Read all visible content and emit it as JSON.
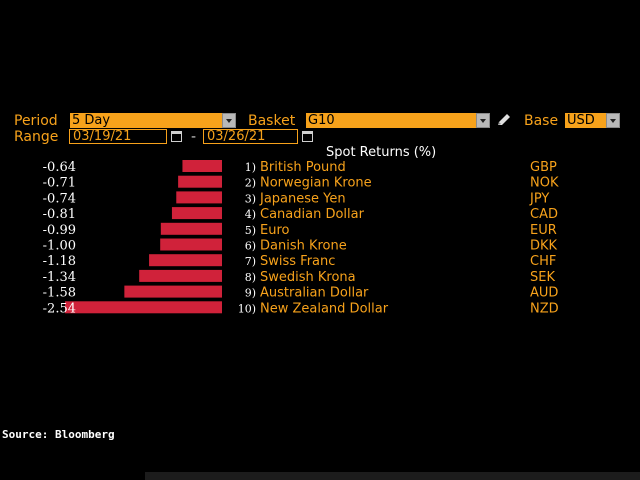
{
  "controls": {
    "period_label": "Period",
    "period_value": "5 Day",
    "basket_label": "Basket",
    "basket_value": "G10",
    "base_label": "Base",
    "base_value": "USD",
    "range_label": "Range",
    "range_start": "03/19/21",
    "range_separator": "-",
    "range_end": "03/26/21"
  },
  "chart_data": {
    "type": "bar",
    "title": "Spot Returns (%)",
    "orientation": "horizontal",
    "rows": [
      {
        "rank": "1)",
        "value": "-0.64",
        "currency": "British Pound",
        "code": "GBP"
      },
      {
        "rank": "2)",
        "value": "-0.71",
        "currency": "Norwegian Krone",
        "code": "NOK"
      },
      {
        "rank": "3)",
        "value": "-0.74",
        "currency": "Japanese Yen",
        "code": "JPY"
      },
      {
        "rank": "4)",
        "value": "-0.81",
        "currency": "Canadian Dollar",
        "code": "CAD"
      },
      {
        "rank": "5)",
        "value": "-0.99",
        "currency": "Euro",
        "code": "EUR"
      },
      {
        "rank": "6)",
        "value": "-1.00",
        "currency": "Danish Krone",
        "code": "DKK"
      },
      {
        "rank": "7)",
        "value": "-1.18",
        "currency": "Swiss Franc",
        "code": "CHF"
      },
      {
        "rank": "8)",
        "value": "-1.34",
        "currency": "Swedish Krona",
        "code": "SEK"
      },
      {
        "rank": "9)",
        "value": "-1.58",
        "currency": "Australian Dollar",
        "code": "AUD"
      },
      {
        "rank": "10)",
        "value": "-2.54",
        "currency": "New Zealand Dollar",
        "code": "NZD"
      }
    ],
    "bar_color": "#d0223a"
  },
  "footer": {
    "source": "Source: Bloomberg"
  },
  "colors": {
    "background": "#000000",
    "accent": "#f7a21b",
    "bar": "#d0223a",
    "text": "#ffffff"
  }
}
